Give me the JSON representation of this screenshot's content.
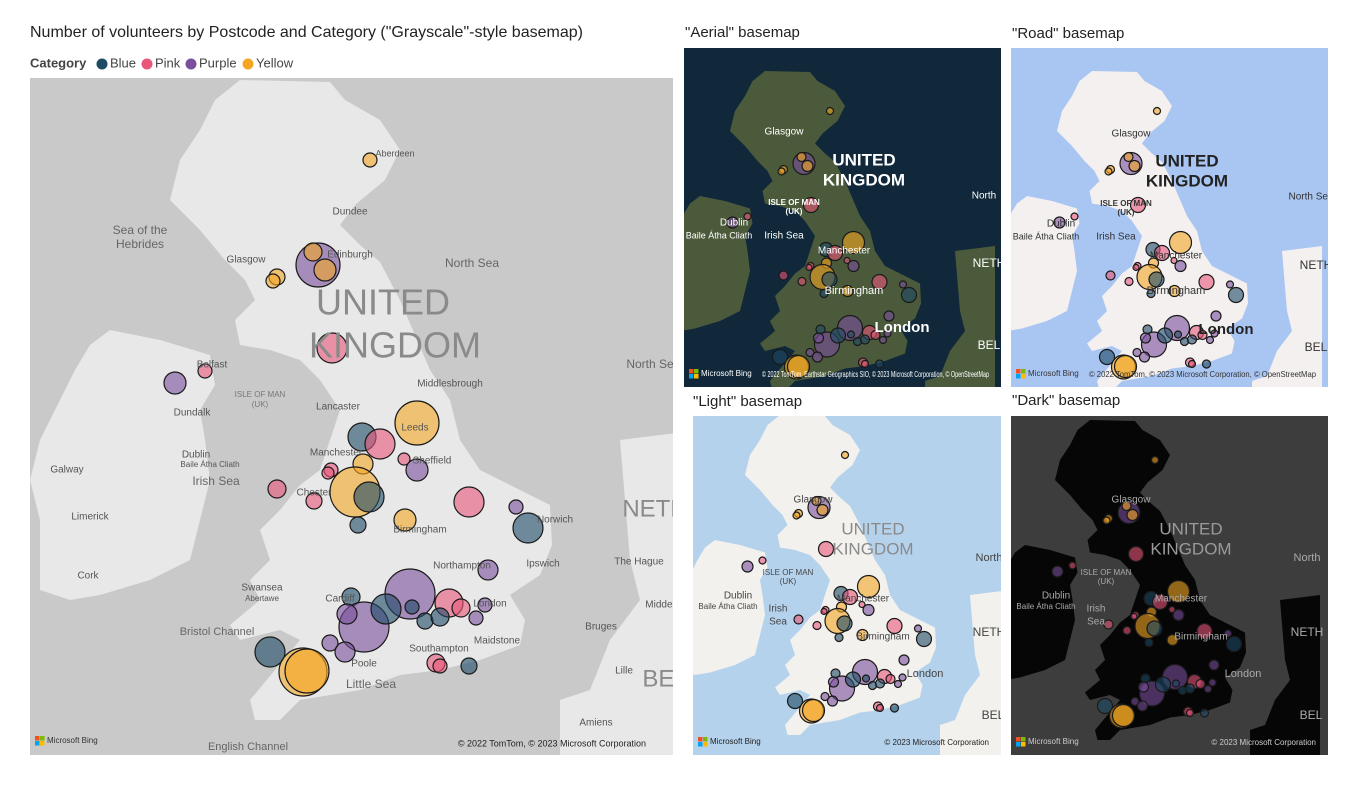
{
  "title": "Number of volunteers by Postcode and Category (\"Grayscale\"-style basemap)",
  "legend": {
    "title": "Category",
    "items": [
      {
        "name": "Blue",
        "color": "#1d4a66"
      },
      {
        "name": "Pink",
        "color": "#e8577a"
      },
      {
        "name": "Purple",
        "color": "#7a4f9c"
      },
      {
        "name": "Yellow",
        "color": "#f4a623"
      }
    ]
  },
  "main_map": {
    "labels": [
      "Aberdeen",
      "Dundee",
      "Sea of the",
      "Hebrides",
      "Glasgow",
      "Edinburgh",
      "North Sea",
      "UNITED",
      "KINGDOM",
      "Belfast",
      "ISLE OF MAN",
      "(UK)",
      "Dundalk",
      "Lancaster",
      "Middlesbrough",
      "Manchester",
      "Leeds",
      "Sheffield",
      "Dublin",
      "Baile Átha Cliath",
      "Galway",
      "Irish Sea",
      "Chester",
      "Limerick",
      "Norwich",
      "Birmingham",
      "NETH",
      "The Hague",
      "Ipswich",
      "Northampton",
      "Cork",
      "Swansea",
      "Abertawe",
      "Cardiff",
      "London",
      "Middel",
      "Bristol Channel",
      "Bruges",
      "Maidstone",
      "Southampton",
      "Lille",
      "Poole",
      "BEL",
      "Little Sea",
      "Amiens",
      "English Channel",
      "North Se"
    ],
    "bing": "Microsoft Bing",
    "attribution": "© 2022 TomTom, © 2023 Microsoft Corporation"
  },
  "panels": [
    {
      "title": "\"Aerial\" basemap",
      "labels": [
        "Glasgow",
        "UNITED",
        "KINGDOM",
        "ISLE OF MAN",
        "(UK)",
        "Dublin",
        "Baile Átha Cliath",
        "Irish Sea",
        "Manchester",
        "Birmingham",
        "London",
        "North",
        "NETH",
        "BEL"
      ],
      "bing": "Microsoft Bing",
      "attribution": "© 2022 TomTom, Earthstar Geographics SIO, © 2023 Microsoft Corporation, © OpenStreetMap"
    },
    {
      "title": "\"Road\" basemap",
      "labels": [
        "Glasgow",
        "UNITED",
        "KINGDOM",
        "ISLE OF MAN",
        "(UK)",
        "Dublin",
        "Baile Átha Cliath",
        "Irish Sea",
        "Manchester",
        "Birmingham",
        "London",
        "North Sea",
        "NETH",
        "BEL"
      ],
      "bing": "Microsoft Bing",
      "attribution": "© 2022 TomTom, © 2023 Microsoft Corporation, © OpenStreetMap"
    },
    {
      "title": "\"Light\" basemap",
      "labels": [
        "Glasgow",
        "UNITED",
        "KINGDOM",
        "ISLE OF MAN",
        "(UK)",
        "Dublin",
        "Baile Átha Cliath",
        "Irish",
        "Sea",
        "Manchester",
        "Birmingham",
        "London",
        "North",
        "NETH",
        "BEL"
      ],
      "bing": "Microsoft Bing",
      "attribution": "© 2023 Microsoft Corporation"
    },
    {
      "title": "\"Dark\" basemap",
      "labels": [
        "Glasgow",
        "UNITED",
        "KINGDOM",
        "ISLE OF MAN",
        "(UK)",
        "Dublin",
        "Baile Átha Cliath",
        "Irish",
        "Sea",
        "Manchester",
        "Birmingham",
        "London",
        "North",
        "NETH",
        "BEL"
      ],
      "bing": "Microsoft Bing",
      "attribution": "© 2023 Microsoft Corporation"
    }
  ]
}
